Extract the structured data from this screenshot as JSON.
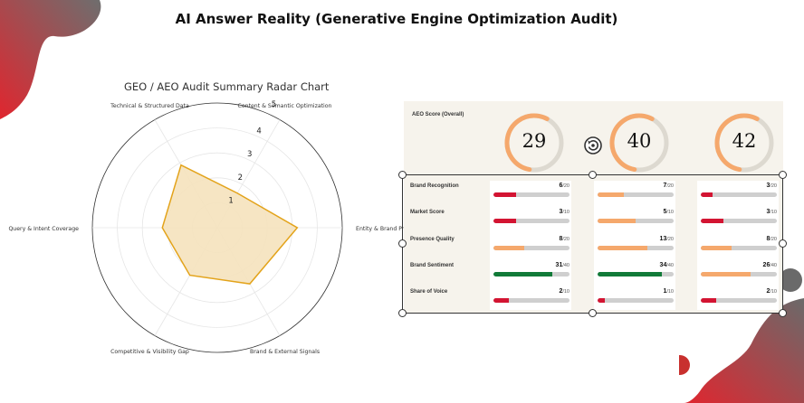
{
  "page": {
    "title": "AI Answer Reality (Generative Engine Optimization Audit)"
  },
  "colors": {
    "red": "#d31432",
    "orange": "#f5a86c",
    "green": "#117a38",
    "track": "#cfcfcf",
    "radar_fill": "#f5e2bc",
    "radar_stroke": "#e3a31a"
  },
  "radar": {
    "title": "GEO / AEO Audit Summary Radar Chart",
    "axes": [
      "Content & Semantic Optimization",
      "Technical & Structured Data",
      "Query & Intent Coverage",
      "Competitive & Visibility Gap",
      "Brand & External Signals",
      "Entity & Brand Presence"
    ],
    "ring_labels": [
      "1",
      "2",
      "3",
      "4",
      "5"
    ]
  },
  "chart_data": {
    "type": "radar",
    "title": "GEO / AEO Audit Summary Radar Chart",
    "axes": [
      "Content & Semantic Optimization",
      "Technical & Structured Data",
      "Query & Intent Coverage",
      "Competitive & Visibility Gap",
      "Brand & External Signals",
      "Entity & Brand Presence"
    ],
    "values": [
      1.6,
      2.9,
      2.2,
      2.2,
      2.6,
      3.2
    ],
    "rlim": [
      0,
      5
    ],
    "grid": true
  },
  "dashboard": {
    "aeo_label": "AEO Score (Overall)",
    "scores": [
      {
        "value": "29",
        "pct": 0.29,
        "color": "#f5a86c"
      },
      {
        "value": "40",
        "pct": 0.4,
        "color": "#f5a86c"
      },
      {
        "value": "42",
        "pct": 0.42,
        "color": "#f5a86c"
      }
    ],
    "row_labels": [
      "Brand Recognition",
      "Market Score",
      "Presence Quality",
      "Brand Sentiment",
      "Share of Voice"
    ],
    "columns": [
      {
        "metrics": [
          {
            "value": "6",
            "den": "/20",
            "frac": 0.3,
            "color": "#d31432"
          },
          {
            "value": "3",
            "den": "/10",
            "frac": 0.3,
            "color": "#d31432"
          },
          {
            "value": "8",
            "den": "/20",
            "frac": 0.4,
            "color": "#f5a86c"
          },
          {
            "value": "31",
            "den": "/40",
            "frac": 0.775,
            "color": "#117a38"
          },
          {
            "value": "2",
            "den": "/10",
            "frac": 0.2,
            "color": "#d31432"
          }
        ]
      },
      {
        "metrics": [
          {
            "value": "7",
            "den": "/20",
            "frac": 0.35,
            "color": "#f5a86c"
          },
          {
            "value": "5",
            "den": "/10",
            "frac": 0.5,
            "color": "#f5a86c"
          },
          {
            "value": "13",
            "den": "/20",
            "frac": 0.65,
            "color": "#f5a86c"
          },
          {
            "value": "34",
            "den": "/40",
            "frac": 0.85,
            "color": "#117a38"
          },
          {
            "value": "1",
            "den": "/10",
            "frac": 0.1,
            "color": "#d31432"
          }
        ]
      },
      {
        "metrics": [
          {
            "value": "3",
            "den": "/20",
            "frac": 0.15,
            "color": "#d31432"
          },
          {
            "value": "3",
            "den": "/10",
            "frac": 0.3,
            "color": "#d31432"
          },
          {
            "value": "8",
            "den": "/20",
            "frac": 0.4,
            "color": "#f5a86c"
          },
          {
            "value": "26",
            "den": "/40",
            "frac": 0.65,
            "color": "#f5a86c"
          },
          {
            "value": "2",
            "den": "/10",
            "frac": 0.2,
            "color": "#d31432"
          }
        ]
      }
    ]
  }
}
